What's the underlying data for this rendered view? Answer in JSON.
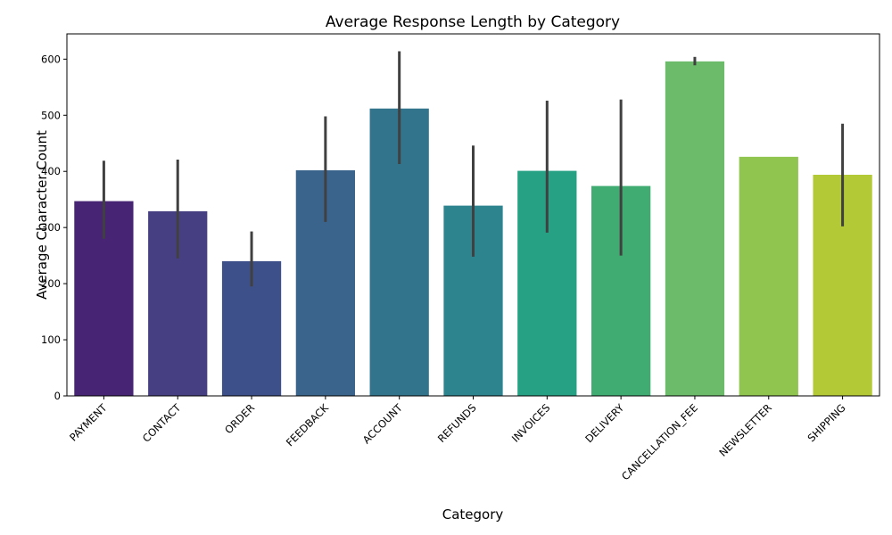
{
  "chart_data": {
    "type": "bar",
    "title": "Average Response Length by Category",
    "xlabel": "Category",
    "ylabel": "Average Character Count",
    "ylim": [
      0,
      645
    ],
    "yticks": [
      0,
      100,
      200,
      300,
      400,
      500,
      600
    ],
    "grid": false,
    "legend": "none",
    "categories": [
      "PAYMENT",
      "CONTACT",
      "ORDER",
      "FEEDBACK",
      "ACCOUNT",
      "REFUNDS",
      "INVOICES",
      "DELIVERY",
      "CANCELLATION_FEE",
      "NEWSLETTER",
      "SHIPPING"
    ],
    "values": [
      347,
      329,
      240,
      402,
      512,
      339,
      401,
      374,
      596,
      426,
      394
    ],
    "error_low": [
      280,
      245,
      195,
      310,
      413,
      248,
      291,
      250,
      589,
      426,
      302
    ],
    "error_high": [
      419,
      421,
      293,
      498,
      614,
      446,
      526,
      528,
      604,
      426,
      485
    ],
    "colors": [
      "#482475",
      "#463f82",
      "#3e5089",
      "#3b648d",
      "#33748d",
      "#2d838e",
      "#26a184",
      "#40ac72",
      "#6bbb6a",
      "#90c54f",
      "#b3c935"
    ],
    "error_color": "#404040"
  }
}
